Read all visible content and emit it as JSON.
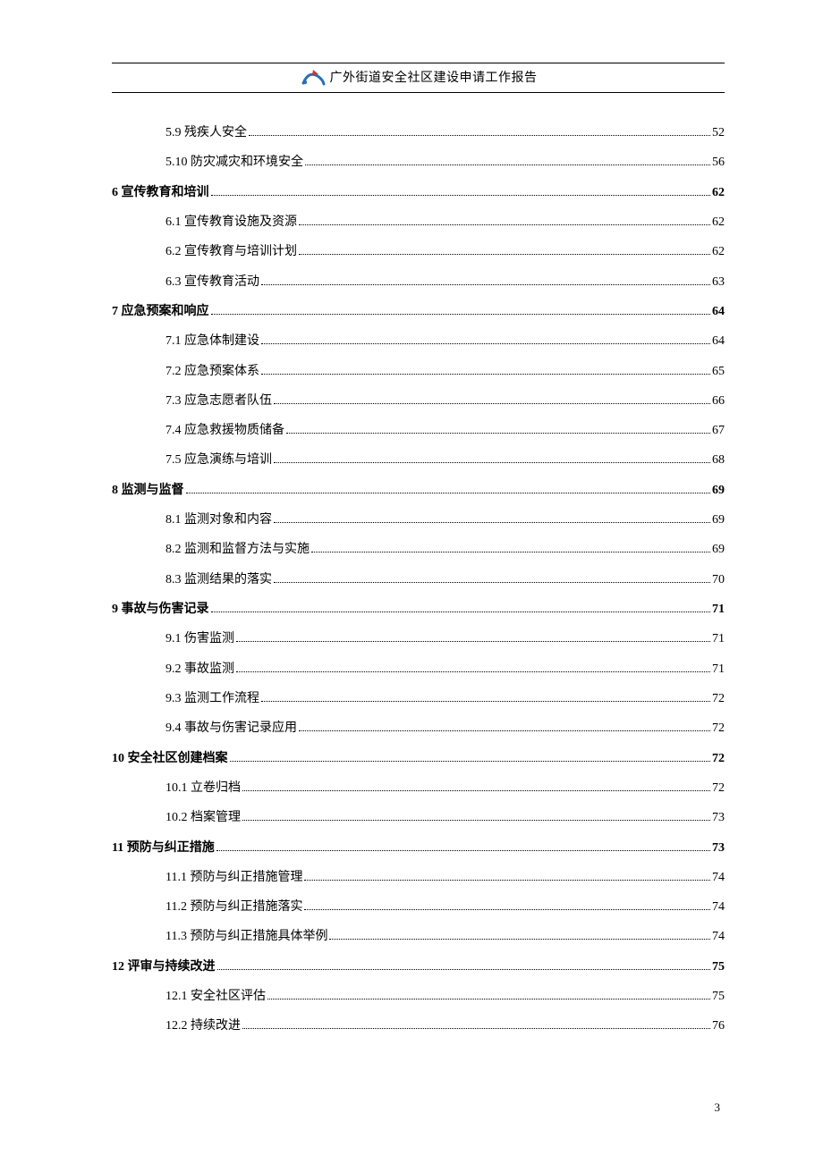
{
  "header": {
    "title": "广外街道安全社区建设申请工作报告",
    "logo_colors": {
      "blue": "#2a6fb5",
      "red": "#c43a2e"
    }
  },
  "toc": [
    {
      "level": 2,
      "label": "5.9 残疾人安全",
      "page": "52"
    },
    {
      "level": 2,
      "label": "5.10 防灾减灾和环境安全",
      "page": "56"
    },
    {
      "level": 1,
      "label": "6 宣传教育和培训",
      "page": "62"
    },
    {
      "level": 2,
      "label": "6.1 宣传教育设施及资源",
      "page": "62"
    },
    {
      "level": 2,
      "label": "6.2 宣传教育与培训计划",
      "page": "62"
    },
    {
      "level": 2,
      "label": "6.3 宣传教育活动",
      "page": "63"
    },
    {
      "level": 1,
      "label": "7 应急预案和响应",
      "page": "64"
    },
    {
      "level": 2,
      "label": "7.1 应急体制建设",
      "page": "64"
    },
    {
      "level": 2,
      "label": "7.2 应急预案体系",
      "page": "65"
    },
    {
      "level": 2,
      "label": "7.3 应急志愿者队伍",
      "page": "66"
    },
    {
      "level": 2,
      "label": "7.4 应急救援物质储备",
      "page": "67"
    },
    {
      "level": 2,
      "label": "7.5 应急演练与培训",
      "page": "68"
    },
    {
      "level": 1,
      "label": "8 监测与监督",
      "page": "69"
    },
    {
      "level": 2,
      "label": "8.1 监测对象和内容",
      "page": "69"
    },
    {
      "level": 2,
      "label": "8.2 监测和监督方法与实施",
      "page": "69"
    },
    {
      "level": 2,
      "label": "8.3 监测结果的落实",
      "page": "70"
    },
    {
      "level": 1,
      "label": "9 事故与伤害记录",
      "page": "71"
    },
    {
      "level": 2,
      "label": "9.1 伤害监测",
      "page": "71"
    },
    {
      "level": 2,
      "label": "9.2 事故监测",
      "page": "71"
    },
    {
      "level": 2,
      "label": "9.3 监测工作流程",
      "page": "72"
    },
    {
      "level": 2,
      "label": "9.4 事故与伤害记录应用",
      "page": "72"
    },
    {
      "level": 1,
      "label": "10 安全社区创建档案",
      "page": "72"
    },
    {
      "level": 2,
      "label": "10.1 立卷归档",
      "page": "72"
    },
    {
      "level": 2,
      "label": "10.2 档案管理",
      "page": "73"
    },
    {
      "level": 1,
      "label": "11 预防与纠正措施",
      "page": "73"
    },
    {
      "level": 2,
      "label": "11.1 预防与纠正措施管理",
      "page": "74"
    },
    {
      "level": 2,
      "label": "11.2 预防与纠正措施落实",
      "page": "74"
    },
    {
      "level": 2,
      "label": "11.3 预防与纠正措施具体举例",
      "page": "74"
    },
    {
      "level": 1,
      "label": "12 评审与持续改进",
      "page": "75"
    },
    {
      "level": 2,
      "label": "12.1 安全社区评估",
      "page": "75"
    },
    {
      "level": 2,
      "label": "12.2 持续改进",
      "page": "76"
    }
  ],
  "footer": {
    "page_number": "3"
  }
}
